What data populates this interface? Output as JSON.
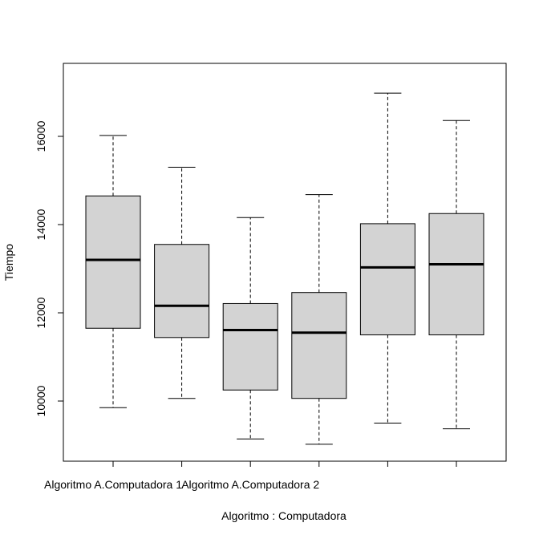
{
  "chart_data": {
    "type": "boxplot",
    "title": "",
    "xlabel": "Algoritmo : Computadora",
    "ylabel": "Tiempo",
    "ylim": [
      8700,
      17400
    ],
    "y_ticks": [
      "10000",
      "12000",
      "14000",
      "16000"
    ],
    "y_tick_values": [
      10000,
      12000,
      14000,
      16000
    ],
    "x_tick_labels": [
      "Algoritmo A.Computadora 1",
      "",
      "Algoritmo A.Computadora 2",
      "",
      "",
      ""
    ],
    "grid": false,
    "box_fill": "#d3d3d3",
    "boxes": [
      {
        "lower_whisker": 9850,
        "q1": 11650,
        "median": 13200,
        "q3": 14650,
        "upper_whisker": 16020
      },
      {
        "lower_whisker": 10060,
        "q1": 11440,
        "median": 12160,
        "q3": 13550,
        "upper_whisker": 15300
      },
      {
        "lower_whisker": 9140,
        "q1": 10250,
        "median": 11610,
        "q3": 12210,
        "upper_whisker": 14160
      },
      {
        "lower_whisker": 9020,
        "q1": 10060,
        "median": 11550,
        "q3": 12460,
        "upper_whisker": 14680
      },
      {
        "lower_whisker": 9500,
        "q1": 11500,
        "median": 13030,
        "q3": 14020,
        "upper_whisker": 16980
      },
      {
        "lower_whisker": 9370,
        "q1": 11500,
        "median": 13100,
        "q3": 14250,
        "upper_whisker": 16360
      }
    ]
  }
}
